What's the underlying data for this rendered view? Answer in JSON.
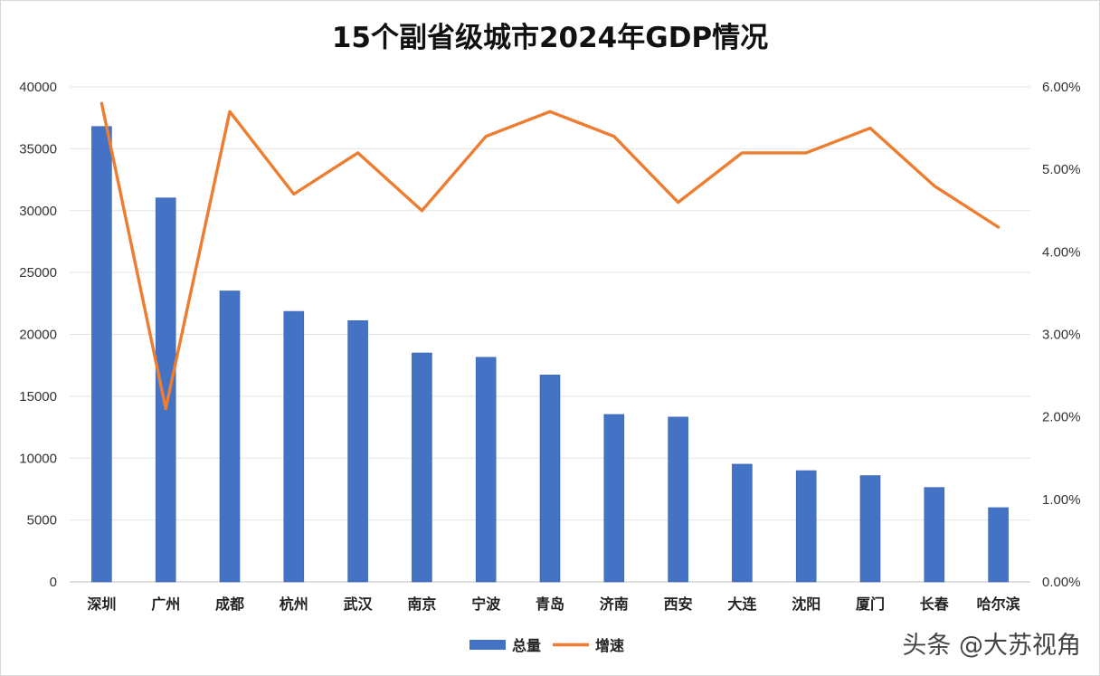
{
  "chart_data": {
    "type": "bar",
    "title": "15个副省级城市2024年GDP情况",
    "categories": [
      "深圳",
      "广州",
      "成都",
      "杭州",
      "武汉",
      "南京",
      "宁波",
      "青岛",
      "济南",
      "西安",
      "大连",
      "沈阳",
      "厦门",
      "长春",
      "哈尔滨"
    ],
    "series": [
      {
        "name": "总量",
        "type": "bar",
        "axis": "left",
        "color": "#4472C4",
        "values": [
          36800,
          31030,
          23510,
          21860,
          21110,
          18500,
          18150,
          16720,
          13530,
          13320,
          9510,
          8990,
          8590,
          7630,
          6000
        ]
      },
      {
        "name": "增速",
        "type": "line",
        "axis": "right",
        "color": "#ED7D31",
        "values": [
          5.8,
          2.1,
          5.7,
          4.7,
          5.2,
          4.5,
          5.4,
          5.7,
          5.4,
          4.6,
          5.2,
          5.2,
          5.5,
          4.8,
          4.3
        ]
      }
    ],
    "ylim_left": [
      0,
      40000
    ],
    "yticks_left": [
      "0",
      "5000",
      "10000",
      "15000",
      "20000",
      "25000",
      "30000",
      "35000",
      "40000"
    ],
    "ylim_right": [
      0,
      6
    ],
    "yticks_right": [
      "0.00%",
      "1.00%",
      "2.00%",
      "3.00%",
      "4.00%",
      "5.00%",
      "6.00%"
    ],
    "grid": true,
    "legend_position": "bottom"
  },
  "watermark": "头条 @大苏视角"
}
